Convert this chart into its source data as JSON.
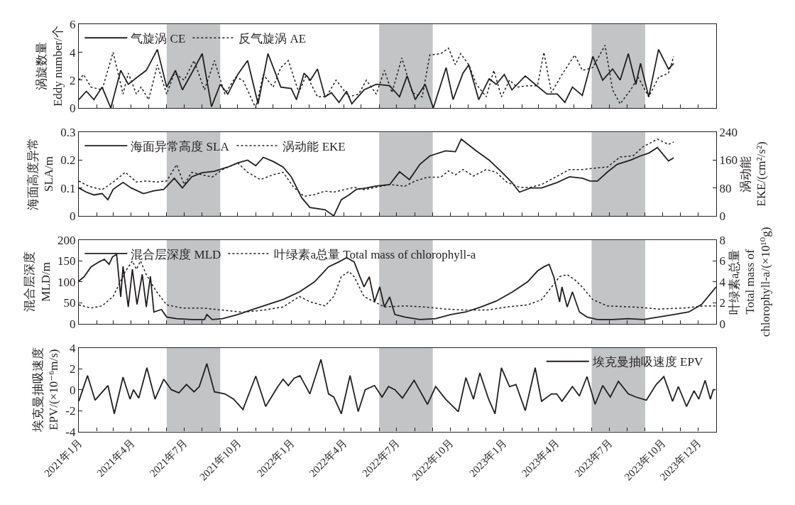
{
  "chart_data": [
    {
      "type": "line",
      "ylabel": "涡旋数量\nEddy number/个",
      "xlim": [
        "2021-01-01",
        "2024-01-01"
      ],
      "ylim": [
        0,
        6
      ],
      "yticks": [
        0,
        2,
        4,
        6
      ],
      "tick_labels": "y",
      "legend": "top left",
      "grid": false,
      "marker": "none",
      "xticks": [
        {
          "value": "2021-01-01",
          "label": null
        },
        {
          "value": "2021-02-01",
          "label": null
        },
        {
          "value": "2021-03-01",
          "label": null
        },
        {
          "value": "2021-04-01",
          "label": null
        },
        {
          "value": "2021-05-01",
          "label": null
        },
        {
          "value": "2021-06-01",
          "label": null
        },
        {
          "value": "2021-07-01",
          "label": null
        },
        {
          "value": "2021-08-01",
          "label": null
        },
        {
          "value": "2021-09-01",
          "label": null
        },
        {
          "value": "2021-10-01",
          "label": null
        },
        {
          "value": "2021-11-01",
          "label": null
        },
        {
          "value": "2021-12-01",
          "label": null
        },
        {
          "value": "2022-01-01",
          "label": null
        },
        {
          "value": "2022-02-01",
          "label": null
        },
        {
          "value": "2022-03-01",
          "label": null
        },
        {
          "value": "2022-04-01",
          "label": null
        },
        {
          "value": "2022-05-01",
          "label": null
        },
        {
          "value": "2022-06-01",
          "label": null
        },
        {
          "value": "2022-07-01",
          "label": null
        },
        {
          "value": "2022-08-01",
          "label": null
        },
        {
          "value": "2022-09-01",
          "label": null
        },
        {
          "value": "2022-10-01",
          "label": null
        },
        {
          "value": "2022-11-01",
          "label": null
        },
        {
          "value": "2022-12-01",
          "label": null
        },
        {
          "value": "2023-01-01",
          "label": null
        },
        {
          "value": "2023-02-01",
          "label": null
        },
        {
          "value": "2023-03-01",
          "label": null
        },
        {
          "value": "2023-04-01",
          "label": null
        },
        {
          "value": "2023-05-01",
          "label": null
        },
        {
          "value": "2023-06-01",
          "label": null
        },
        {
          "value": "2023-07-01",
          "label": null
        },
        {
          "value": "2023-08-01",
          "label": null
        },
        {
          "value": "2023-09-01",
          "label": null
        },
        {
          "value": "2023-10-01",
          "label": null
        },
        {
          "value": "2023-11-01",
          "label": null
        },
        {
          "value": "2023-12-01",
          "label": null
        },
        {
          "value": "2024-01-01",
          "label": null
        }
      ],
      "bands": [
        {
          "axis": "x",
          "from": "2021-06-01",
          "to": "2021-09-01",
          "color": "#c3c4c6"
        },
        {
          "axis": "x",
          "from": "2022-06-01",
          "to": "2022-09-01",
          "color": "#c3c4c6"
        },
        {
          "axis": "x",
          "from": "2023-06-01",
          "to": "2023-09-01",
          "color": "#c3c4c6"
        }
      ],
      "series": [
        {
          "name": "气旋涡 CE",
          "color": "#231f20",
          "line_style": "solid",
          "x": [
            "2021-01-01",
            "2021-01-14",
            "2021-01-27",
            "2021-02-10",
            "2021-02-25",
            "2021-03-14",
            "2021-03-27",
            "2021-04-14",
            "2021-04-27",
            "2021-05-16",
            "2021-06-01",
            "2021-06-16",
            "2021-06-28",
            "2021-07-14",
            "2021-08-01",
            "2021-08-17",
            "2021-09-01",
            "2021-09-14",
            "2021-10-01",
            "2021-10-18",
            "2021-11-05",
            "2021-11-22",
            "2021-12-14",
            "2022-01-01",
            "2022-01-10",
            "2022-01-23",
            "2022-02-03",
            "2022-02-15",
            "2022-02-28",
            "2022-03-11",
            "2022-03-24",
            "2022-04-06",
            "2022-04-15",
            "2022-05-06",
            "2022-05-27",
            "2022-06-19",
            "2022-07-06",
            "2022-07-19",
            "2022-08-02",
            "2022-08-19",
            "2022-09-02",
            "2022-09-24",
            "2022-10-06",
            "2022-10-23",
            "2022-11-02",
            "2022-11-19",
            "2022-12-07",
            "2022-12-19",
            "2023-01-02",
            "2023-01-15",
            "2023-02-07",
            "2023-02-24",
            "2023-03-16",
            "2023-04-03",
            "2023-04-16",
            "2023-04-29",
            "2023-05-16",
            "2023-06-03",
            "2023-06-20",
            "2023-07-07",
            "2023-07-20",
            "2023-08-03",
            "2023-08-16",
            "2023-08-24",
            "2023-09-07",
            "2023-09-24",
            "2023-10-11",
            "2023-10-20"
          ],
          "values": [
            0.6,
            1.2,
            0.6,
            1.5,
            0,
            2.7,
            1.7,
            2.3,
            2.7,
            4.2,
            1.5,
            2.7,
            1.3,
            2.5,
            3.9,
            0.1,
            1.7,
            1.0,
            2.4,
            3.4,
            0.3,
            3.9,
            1.5,
            1.4,
            0.6,
            2.5,
            2.0,
            2.8,
            0.8,
            1.1,
            0.4,
            1.2,
            0.3,
            1.3,
            1.7,
            1.6,
            0.8,
            2.3,
            0.6,
            1.7,
            0,
            2.9,
            0.6,
            2.5,
            3.1,
            0.6,
            2.1,
            1.7,
            2.4,
            1.3,
            2.3,
            1.7,
            1.0,
            1.0,
            0.4,
            1.5,
            0.9,
            3.7,
            2.0,
            2.8,
            2.0,
            3.9,
            1.7,
            3.2,
            0.8,
            4.2,
            2.8,
            3.2
          ]
        },
        {
          "name": "反气旋涡 AE",
          "color": "#231f20",
          "line_style": "dotted",
          "x": [
            "2021-01-01",
            "2021-01-09",
            "2021-01-22",
            "2021-02-10",
            "2021-03-01",
            "2021-03-18",
            "2021-03-27",
            "2021-04-10",
            "2021-04-18",
            "2021-05-01",
            "2021-05-16",
            "2021-06-01",
            "2021-06-14",
            "2021-07-01",
            "2021-07-18",
            "2021-08-05",
            "2021-08-22",
            "2021-09-09",
            "2021-09-27",
            "2021-10-10",
            "2021-11-01",
            "2021-11-14",
            "2021-12-01",
            "2021-12-14",
            "2021-12-27",
            "2022-01-14",
            "2022-01-27",
            "2022-02-15",
            "2022-03-02",
            "2022-03-19",
            "2022-04-10",
            "2022-04-27",
            "2022-05-10",
            "2022-05-27",
            "2022-06-10",
            "2022-06-23",
            "2022-07-10",
            "2022-07-28",
            "2022-08-14",
            "2022-08-27",
            "2022-09-15",
            "2022-09-28",
            "2022-10-10",
            "2022-10-19",
            "2022-11-02",
            "2022-11-15",
            "2022-12-02",
            "2022-12-15",
            "2022-12-28",
            "2023-01-11",
            "2023-01-24",
            "2023-02-11",
            "2023-02-28",
            "2023-03-11",
            "2023-03-24",
            "2023-04-11",
            "2023-05-03",
            "2023-05-16",
            "2023-06-03",
            "2023-06-24",
            "2023-07-07",
            "2023-07-20",
            "2023-08-07",
            "2023-08-20",
            "2023-09-07",
            "2023-09-24",
            "2023-10-11",
            "2023-10-20"
          ],
          "values": [
            2.0,
            2.4,
            1.5,
            1.3,
            4.0,
            1.0,
            2.5,
            1.0,
            1.5,
            0.6,
            3.1,
            1.0,
            2.5,
            2.0,
            3.4,
            1.3,
            3.4,
            1.0,
            2.2,
            2.0,
            0,
            2.4,
            1.5,
            2.9,
            3.4,
            1.1,
            2.4,
            0.8,
            0.8,
            2.0,
            0.8,
            1.0,
            2.0,
            1.0,
            2.7,
            1.1,
            3.6,
            1.1,
            0.8,
            3.8,
            3.9,
            4.3,
            3.1,
            3.9,
            3.1,
            1.7,
            0.8,
            2.7,
            0.8,
            2.0,
            1.5,
            1.6,
            1.6,
            4.0,
            1.1,
            2.4,
            3.8,
            2.7,
            2.9,
            4.5,
            1.3,
            0.3,
            1.3,
            2.2,
            0.8,
            2.2,
            2.5,
            3.7
          ]
        }
      ]
    },
    {
      "type": "line",
      "ylabel": "海面高度异常\nSLA/m",
      "y2label": "涡动能\nEKE/(cm²/s²)",
      "xlim": [
        "2021-01-01",
        "2024-01-01"
      ],
      "ylim": [
        0,
        0.3
      ],
      "yticks": [
        0,
        0.1,
        0.2,
        0.3
      ],
      "y2lim": [
        0,
        240
      ],
      "y2ticks": [
        0,
        80,
        160,
        240
      ],
      "tick_labels": "y",
      "legend": "top left",
      "grid": false,
      "marker": "none",
      "xticks": [
        {
          "value": "2021-01-01",
          "label": null
        },
        {
          "value": "2021-02-01",
          "label": null
        },
        {
          "value": "2021-03-01",
          "label": null
        },
        {
          "value": "2021-04-01",
          "label": null
        },
        {
          "value": "2021-05-01",
          "label": null
        },
        {
          "value": "2021-06-01",
          "label": null
        },
        {
          "value": "2021-07-01",
          "label": null
        },
        {
          "value": "2021-08-01",
          "label": null
        },
        {
          "value": "2021-09-01",
          "label": null
        },
        {
          "value": "2021-10-01",
          "label": null
        },
        {
          "value": "2021-11-01",
          "label": null
        },
        {
          "value": "2021-12-01",
          "label": null
        },
        {
          "value": "2022-01-01",
          "label": null
        },
        {
          "value": "2022-02-01",
          "label": null
        },
        {
          "value": "2022-03-01",
          "label": null
        },
        {
          "value": "2022-04-01",
          "label": null
        },
        {
          "value": "2022-05-01",
          "label": null
        },
        {
          "value": "2022-06-01",
          "label": null
        },
        {
          "value": "2022-07-01",
          "label": null
        },
        {
          "value": "2022-08-01",
          "label": null
        },
        {
          "value": "2022-09-01",
          "label": null
        },
        {
          "value": "2022-10-01",
          "label": null
        },
        {
          "value": "2022-11-01",
          "label": null
        },
        {
          "value": "2022-12-01",
          "label": null
        },
        {
          "value": "2023-01-01",
          "label": null
        },
        {
          "value": "2023-02-01",
          "label": null
        },
        {
          "value": "2023-03-01",
          "label": null
        },
        {
          "value": "2023-04-01",
          "label": null
        },
        {
          "value": "2023-05-01",
          "label": null
        },
        {
          "value": "2023-06-01",
          "label": null
        },
        {
          "value": "2023-07-01",
          "label": null
        },
        {
          "value": "2023-08-01",
          "label": null
        },
        {
          "value": "2023-09-01",
          "label": null
        },
        {
          "value": "2023-10-01",
          "label": null
        },
        {
          "value": "2023-11-01",
          "label": null
        },
        {
          "value": "2023-12-01",
          "label": null
        },
        {
          "value": "2024-01-01",
          "label": null
        }
      ],
      "bands": [
        {
          "axis": "x",
          "from": "2021-06-01",
          "to": "2021-09-01",
          "color": "#c3c4c6"
        },
        {
          "axis": "x",
          "from": "2022-06-01",
          "to": "2022-09-01",
          "color": "#c3c4c6"
        },
        {
          "axis": "x",
          "from": "2023-06-01",
          "to": "2023-09-01",
          "color": "#c3c4c6"
        }
      ],
      "series": [
        {
          "name": "海面异常高度 SLA",
          "color": "#231f20",
          "line_style": "solid",
          "x": [
            "2021-01-01",
            "2021-01-14",
            "2021-01-27",
            "2021-02-10",
            "2021-02-20",
            "2021-03-01",
            "2021-03-18",
            "2021-04-01",
            "2021-04-22",
            "2021-05-10",
            "2021-05-27",
            "2021-06-14",
            "2021-06-28",
            "2021-07-14",
            "2021-08-01",
            "2021-08-22",
            "2021-09-14",
            "2021-10-01",
            "2021-10-18",
            "2021-11-01",
            "2021-11-14",
            "2021-12-01",
            "2021-12-18",
            "2022-01-01",
            "2022-01-19",
            "2022-02-02",
            "2022-02-28",
            "2022-03-15",
            "2022-03-28",
            "2022-04-10",
            "2022-04-23",
            "2022-05-10",
            "2022-05-27",
            "2022-06-19",
            "2022-07-06",
            "2022-07-23",
            "2022-08-10",
            "2022-08-27",
            "2022-09-23",
            "2022-10-10",
            "2022-10-20",
            "2022-11-15",
            "2022-12-07",
            "2022-12-28",
            "2023-01-15",
            "2023-01-28",
            "2023-02-16",
            "2023-03-07",
            "2023-04-03",
            "2023-04-24",
            "2023-05-16",
            "2023-05-29",
            "2023-06-11",
            "2023-06-28",
            "2023-07-15",
            "2023-08-07",
            "2023-08-24",
            "2023-09-07",
            "2023-09-22",
            "2023-10-11",
            "2023-10-20"
          ],
          "values": [
            0.1,
            0.085,
            0.075,
            0.08,
            0.058,
            0.095,
            0.12,
            0.1,
            0.08,
            0.09,
            0.095,
            0.135,
            0.1,
            0.14,
            0.155,
            0.16,
            0.175,
            0.19,
            0.2,
            0.18,
            0.21,
            0.195,
            0.175,
            0.14,
            0.065,
            0.03,
            0.022,
            0,
            0.058,
            0.075,
            0.095,
            0.1,
            0.107,
            0.112,
            0.158,
            0.13,
            0.185,
            0.215,
            0.233,
            0.23,
            0.275,
            0.233,
            0.2,
            0.158,
            0.12,
            0.085,
            0.1,
            0.1,
            0.12,
            0.14,
            0.135,
            0.125,
            0.125,
            0.157,
            0.185,
            0.2,
            0.215,
            0.225,
            0.245,
            0.197,
            0.208
          ]
        },
        {
          "name": "涡动能 EKE",
          "color": "#231f20",
          "line_style": "dotted",
          "axis": "y2",
          "x": [
            "2021-01-01",
            "2021-01-18",
            "2021-02-10",
            "2021-03-01",
            "2021-03-22",
            "2021-04-10",
            "2021-04-27",
            "2021-05-14",
            "2021-06-01",
            "2021-06-18",
            "2021-07-01",
            "2021-07-14",
            "2021-08-01",
            "2021-08-18",
            "2021-09-05",
            "2021-10-01",
            "2021-10-18",
            "2021-11-09",
            "2021-12-01",
            "2021-12-18",
            "2022-01-05",
            "2022-01-23",
            "2022-02-10",
            "2022-02-28",
            "2022-03-15",
            "2022-04-02",
            "2022-04-19",
            "2022-05-06",
            "2022-05-27",
            "2022-06-19",
            "2022-07-15",
            "2022-08-02",
            "2022-08-23",
            "2022-09-15",
            "2022-09-28",
            "2022-10-10",
            "2022-10-23",
            "2022-11-10",
            "2022-12-02",
            "2022-12-19",
            "2023-01-06",
            "2023-01-28",
            "2023-02-16",
            "2023-03-07",
            "2023-04-03",
            "2023-04-24",
            "2023-05-16",
            "2023-06-07",
            "2023-06-28",
            "2023-07-20",
            "2023-08-11",
            "2023-08-28",
            "2023-09-22",
            "2023-10-11",
            "2023-10-20"
          ],
          "values": [
            100,
            85,
            75,
            97,
            125,
            97,
            100,
            97,
            100,
            147,
            90,
            125,
            118,
            111,
            133,
            152,
            125,
            104,
            118,
            125,
            82,
            56,
            61,
            71,
            68,
            75,
            82,
            75,
            82,
            90,
            85,
            100,
            111,
            111,
            129,
            118,
            133,
            114,
            133,
            125,
            97,
            82,
            82,
            90,
            114,
            133,
            133,
            137,
            140,
            169,
            172,
            198,
            220,
            205,
            212
          ]
        }
      ]
    },
    {
      "type": "line",
      "ylabel": "混合层深度\nMLD/m",
      "y2label": "叶绿素a总量\nTotal mass of\nchlorophyll-a/(×10¹⁰g)",
      "xlim": [
        "2021-01-01",
        "2024-01-01"
      ],
      "ylim": [
        0,
        200
      ],
      "yticks": [
        0,
        50,
        100,
        150,
        200
      ],
      "y2lim": [
        0,
        8
      ],
      "y2ticks": [
        0,
        2,
        4,
        6,
        8
      ],
      "tick_labels": "y",
      "legend": "top left",
      "grid": false,
      "marker": "none",
      "xticks": [
        {
          "value": "2021-01-01",
          "label": null
        },
        {
          "value": "2021-02-01",
          "label": null
        },
        {
          "value": "2021-03-01",
          "label": null
        },
        {
          "value": "2021-04-01",
          "label": null
        },
        {
          "value": "2021-05-01",
          "label": null
        },
        {
          "value": "2021-06-01",
          "label": null
        },
        {
          "value": "2021-07-01",
          "label": null
        },
        {
          "value": "2021-08-01",
          "label": null
        },
        {
          "value": "2021-09-01",
          "label": null
        },
        {
          "value": "2021-10-01",
          "label": null
        },
        {
          "value": "2021-11-01",
          "label": null
        },
        {
          "value": "2021-12-01",
          "label": null
        },
        {
          "value": "2022-01-01",
          "label": null
        },
        {
          "value": "2022-02-01",
          "label": null
        },
        {
          "value": "2022-03-01",
          "label": null
        },
        {
          "value": "2022-04-01",
          "label": null
        },
        {
          "value": "2022-05-01",
          "label": null
        },
        {
          "value": "2022-06-01",
          "label": null
        },
        {
          "value": "2022-07-01",
          "label": null
        },
        {
          "value": "2022-08-01",
          "label": null
        },
        {
          "value": "2022-09-01",
          "label": null
        },
        {
          "value": "2022-10-01",
          "label": null
        },
        {
          "value": "2022-11-01",
          "label": null
        },
        {
          "value": "2022-12-01",
          "label": null
        },
        {
          "value": "2023-01-01",
          "label": null
        },
        {
          "value": "2023-02-01",
          "label": null
        },
        {
          "value": "2023-03-01",
          "label": null
        },
        {
          "value": "2023-04-01",
          "label": null
        },
        {
          "value": "2023-05-01",
          "label": null
        },
        {
          "value": "2023-06-01",
          "label": null
        },
        {
          "value": "2023-07-01",
          "label": null
        },
        {
          "value": "2023-08-01",
          "label": null
        },
        {
          "value": "2023-09-01",
          "label": null
        },
        {
          "value": "2023-10-01",
          "label": null
        },
        {
          "value": "2023-11-01",
          "label": null
        },
        {
          "value": "2023-12-01",
          "label": null
        },
        {
          "value": "2024-01-01",
          "label": null
        }
      ],
      "bands": [
        {
          "axis": "x",
          "from": "2021-06-01",
          "to": "2021-09-01",
          "color": "#c3c4c6"
        },
        {
          "axis": "x",
          "from": "2022-06-01",
          "to": "2022-09-01",
          "color": "#c3c4c6"
        },
        {
          "axis": "x",
          "from": "2023-06-01",
          "to": "2023-09-01",
          "color": "#c3c4c6"
        }
      ],
      "series": [
        {
          "name": "混合层深度 MLD",
          "color": "#231f20",
          "line_style": "solid",
          "x": [
            "2021-01-01",
            "2021-01-10",
            "2021-01-22",
            "2021-02-05",
            "2021-02-14",
            "2021-02-22",
            "2021-02-28",
            "2021-03-07",
            "2021-03-14",
            "2021-03-18",
            "2021-03-27",
            "2021-04-03",
            "2021-04-11",
            "2021-04-20",
            "2021-04-27",
            "2021-05-04",
            "2021-05-10",
            "2021-05-23",
            "2021-06-01",
            "2021-06-18",
            "2021-07-14",
            "2021-08-05",
            "2021-08-09",
            "2021-08-18",
            "2021-09-05",
            "2021-10-01",
            "2021-10-27",
            "2021-11-22",
            "2021-12-18",
            "2022-01-15",
            "2022-02-10",
            "2022-03-06",
            "2022-03-24",
            "2022-04-06",
            "2022-04-19",
            "2022-04-29",
            "2022-05-06",
            "2022-05-15",
            "2022-05-24",
            "2022-06-02",
            "2022-06-10",
            "2022-06-19",
            "2022-06-28",
            "2022-07-15",
            "2022-08-10",
            "2022-09-06",
            "2022-10-02",
            "2022-10-28",
            "2022-11-23",
            "2022-12-19",
            "2023-01-16",
            "2023-02-11",
            "2023-02-28",
            "2023-03-11",
            "2023-03-20",
            "2023-03-28",
            "2023-04-07",
            "2023-04-11",
            "2023-04-20",
            "2023-04-29",
            "2023-05-11",
            "2023-05-24",
            "2023-06-11",
            "2023-07-07",
            "2023-08-03",
            "2023-08-29",
            "2023-09-24",
            "2023-10-20",
            "2023-11-15",
            "2023-12-07",
            "2024-01-01"
          ],
          "values": [
            102,
            112,
            136,
            148,
            154,
            142,
            160,
            166,
            64,
            137,
            40,
            130,
            46,
            118,
            40,
            113,
            28,
            34,
            16,
            12,
            10,
            10,
            22,
            10,
            12,
            22,
            34,
            46,
            58,
            76,
            100,
            136,
            148,
            158,
            148,
            112,
            88,
            112,
            52,
            88,
            40,
            64,
            22,
            16,
            10,
            12,
            22,
            28,
            40,
            54,
            76,
            100,
            126,
            136,
            142,
            112,
            52,
            88,
            40,
            76,
            28,
            16,
            10,
            10,
            12,
            10,
            16,
            22,
            28,
            46,
            88
          ]
        },
        {
          "name": "叶绿素a总量 Total mass of chlorophyll-a",
          "color": "#231f20",
          "line_style": "dotted",
          "axis": "y2",
          "x": [
            "2021-01-01",
            "2021-01-22",
            "2021-02-10",
            "2021-03-01",
            "2021-03-22",
            "2021-04-03",
            "2021-04-10",
            "2021-04-17",
            "2021-04-27",
            "2021-05-14",
            "2021-06-01",
            "2021-06-27",
            "2021-08-01",
            "2021-09-05",
            "2021-10-10",
            "2021-11-14",
            "2021-12-18",
            "2022-01-15",
            "2022-02-02",
            "2022-02-28",
            "2022-03-15",
            "2022-03-28",
            "2022-04-10",
            "2022-04-19",
            "2022-05-06",
            "2022-06-10",
            "2022-07-15",
            "2022-08-19",
            "2022-09-23",
            "2022-10-28",
            "2022-12-02",
            "2023-01-07",
            "2023-02-11",
            "2023-03-07",
            "2023-03-24",
            "2023-04-07",
            "2023-04-20",
            "2023-05-03",
            "2023-05-16",
            "2023-06-03",
            "2023-06-28",
            "2023-08-11",
            "2023-09-24",
            "2023-11-07",
            "2023-12-11",
            "2023-12-31"
          ],
          "values": [
            1.8,
            1.5,
            1.7,
            2.6,
            5.0,
            6.0,
            5.2,
            6.0,
            4.7,
            3.1,
            1.8,
            1.5,
            1.5,
            1.3,
            1.1,
            1.3,
            1.6,
            2.6,
            2.1,
            1.7,
            2.6,
            4.5,
            5.0,
            4.5,
            2.6,
            1.6,
            1.7,
            1.6,
            1.4,
            1.3,
            1.3,
            1.6,
            1.8,
            2.3,
            3.5,
            4.5,
            4.7,
            4.2,
            3.5,
            2.3,
            1.7,
            1.6,
            1.4,
            1.5,
            1.7,
            1.7
          ]
        }
      ]
    },
    {
      "type": "line",
      "ylabel": "埃克曼抽吸速度\nEPV/(×10⁻⁶m/s)",
      "xlim": [
        "2021-01-01",
        "2024-01-01"
      ],
      "ylim": [
        -4,
        4
      ],
      "yticks": [
        -4,
        -2,
        0,
        2,
        4
      ],
      "legend": "top right",
      "grid": false,
      "marker": "none",
      "xticks": [
        {
          "value": "2021-01-01",
          "label": "2021年1月"
        },
        {
          "value": "2021-02-01",
          "label": null
        },
        {
          "value": "2021-03-01",
          "label": null
        },
        {
          "value": "2021-04-01",
          "label": "2021年4月"
        },
        {
          "value": "2021-05-01",
          "label": null
        },
        {
          "value": "2021-06-01",
          "label": null
        },
        {
          "value": "2021-07-01",
          "label": "2021年7月"
        },
        {
          "value": "2021-08-01",
          "label": null
        },
        {
          "value": "2021-09-01",
          "label": null
        },
        {
          "value": "2021-10-01",
          "label": "2021年10月"
        },
        {
          "value": "2021-11-01",
          "label": null
        },
        {
          "value": "2021-12-01",
          "label": null
        },
        {
          "value": "2022-01-01",
          "label": "2022年1月"
        },
        {
          "value": "2022-02-01",
          "label": null
        },
        {
          "value": "2022-03-01",
          "label": null
        },
        {
          "value": "2022-04-01",
          "label": "2022年4月"
        },
        {
          "value": "2022-05-01",
          "label": null
        },
        {
          "value": "2022-06-01",
          "label": null
        },
        {
          "value": "2022-07-01",
          "label": "2022年7月"
        },
        {
          "value": "2022-08-01",
          "label": null
        },
        {
          "value": "2022-09-01",
          "label": null
        },
        {
          "value": "2022-10-01",
          "label": "2022年10月"
        },
        {
          "value": "2022-11-01",
          "label": null
        },
        {
          "value": "2022-12-01",
          "label": null
        },
        {
          "value": "2023-01-01",
          "label": "2023年1月"
        },
        {
          "value": "2023-02-01",
          "label": null
        },
        {
          "value": "2023-03-01",
          "label": null
        },
        {
          "value": "2023-04-01",
          "label": "2023年4月"
        },
        {
          "value": "2023-05-01",
          "label": null
        },
        {
          "value": "2023-06-01",
          "label": null
        },
        {
          "value": "2023-07-01",
          "label": "2023年7月"
        },
        {
          "value": "2023-08-01",
          "label": null
        },
        {
          "value": "2023-09-01",
          "label": null
        },
        {
          "value": "2023-10-01",
          "label": "2023年10月"
        },
        {
          "value": "2023-11-01",
          "label": null
        },
        {
          "value": "2023-12-01",
          "label": "2023年12月"
        },
        {
          "value": "2024-01-01",
          "label": null
        }
      ],
      "bands": [
        {
          "axis": "x",
          "from": "2021-06-01",
          "to": "2021-09-01",
          "color": "#c3c4c6"
        },
        {
          "axis": "x",
          "from": "2022-06-01",
          "to": "2022-09-01",
          "color": "#c3c4c6"
        },
        {
          "axis": "x",
          "from": "2023-06-01",
          "to": "2023-09-01",
          "color": "#c3c4c6"
        }
      ],
      "series": [
        {
          "name": "埃克曼抽吸速度 EPV",
          "color": "#231f20",
          "line_style": "solid",
          "x": [
            "2021-01-01",
            "2021-01-16",
            "2021-01-29",
            "2021-02-20",
            "2021-03-03",
            "2021-03-18",
            "2021-03-30",
            "2021-04-05",
            "2021-04-14",
            "2021-04-28",
            "2021-05-12",
            "2021-05-27",
            "2021-06-09",
            "2021-06-22",
            "2021-07-05",
            "2021-07-18",
            "2021-07-27",
            "2021-08-09",
            "2021-08-22",
            "2021-09-09",
            "2021-09-24",
            "2021-10-10",
            "2021-11-01",
            "2021-11-18",
            "2021-12-09",
            "2021-12-18",
            "2021-12-27",
            "2022-01-06",
            "2022-01-16",
            "2022-02-02",
            "2022-02-21",
            "2022-03-06",
            "2022-03-15",
            "2022-03-28",
            "2022-04-12",
            "2022-04-26",
            "2022-05-08",
            "2022-05-24",
            "2022-06-06",
            "2022-06-17",
            "2022-06-28",
            "2022-07-11",
            "2022-07-31",
            "2022-08-23",
            "2022-09-06",
            "2022-09-23",
            "2022-10-15",
            "2022-10-28",
            "2022-11-10",
            "2022-11-21",
            "2022-12-06",
            "2022-12-17",
            "2022-12-28",
            "2023-01-11",
            "2023-01-22",
            "2023-02-07",
            "2023-02-24",
            "2023-03-07",
            "2023-03-24",
            "2023-04-02",
            "2023-04-11",
            "2023-04-29",
            "2023-05-11",
            "2023-05-24",
            "2023-06-07",
            "2023-06-20",
            "2023-07-03",
            "2023-07-17",
            "2023-08-03",
            "2023-08-16",
            "2023-09-03",
            "2023-09-20",
            "2023-10-03",
            "2023-10-18",
            "2023-10-28",
            "2023-11-11",
            "2023-11-24",
            "2023-12-02",
            "2023-12-13",
            "2023-12-22",
            "2023-12-27",
            "2023-12-31"
          ],
          "values": [
            -1.1,
            1.35,
            -1.0,
            0.4,
            -2.3,
            1.2,
            -0.9,
            0,
            -0.8,
            2.1,
            -0.9,
            1.0,
            0,
            -0.3,
            0.5,
            -0.2,
            0.3,
            2.5,
            -0.2,
            -0.4,
            -0.9,
            -1.9,
            1.3,
            -1.6,
            0.3,
            1.0,
            0.4,
            1.1,
            1.35,
            -0.4,
            2.9,
            -0.4,
            -0.7,
            -2.3,
            1.35,
            -2.1,
            0,
            0.4,
            -0.7,
            0.3,
            0,
            -0.8,
            0.9,
            -1.4,
            0.3,
            -0.9,
            -2.1,
            1.15,
            -0.9,
            1.6,
            -0.9,
            -2.3,
            2.1,
            0.3,
            0.5,
            -2.0,
            2.1,
            -1.1,
            -0.4,
            -0.4,
            -1.1,
            0.3,
            -0.6,
            1.25,
            -1.4,
            0.4,
            -0.7,
            0.8,
            -0.4,
            -0.7,
            -1.0,
            0.5,
            1.25,
            -1.1,
            0.3,
            -1.6,
            -0.1,
            -0.9,
            0.9,
            -0.9,
            0,
            0
          ]
        }
      ]
    }
  ]
}
